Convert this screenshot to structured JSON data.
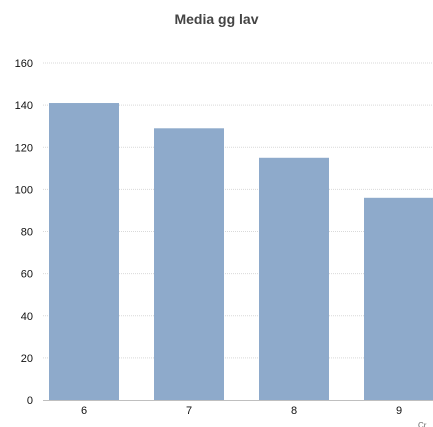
{
  "chart_data": {
    "type": "bar",
    "title": "Media gg lav",
    "xlabel": "",
    "ylabel": "",
    "categories": [
      "6",
      "7",
      "8",
      "9"
    ],
    "values": [
      141,
      129,
      115,
      96
    ],
    "ylim": [
      0,
      160
    ],
    "yticks": [
      0,
      20,
      40,
      60,
      80,
      100,
      120,
      140,
      160
    ],
    "bar_color": "#8eaacb",
    "grid": true,
    "grid_color": "#d9d9d9",
    "legend": "none",
    "clipped_text": "Cr"
  }
}
